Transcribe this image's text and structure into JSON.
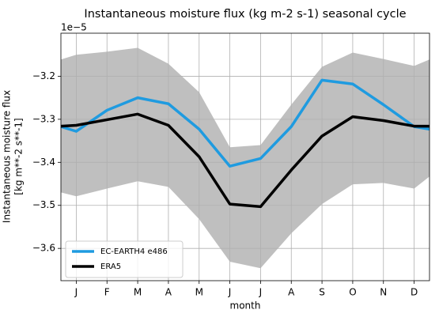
{
  "chart_data": {
    "type": "line",
    "title": "Instantaneous moisture flux (kg m-2 s-1) seasonal cycle",
    "offset_label": "1e−5",
    "ylabel": [
      "Instantaneous moisture flux",
      "[kg m**-2 s**-1]"
    ],
    "xlabel": "month",
    "x": [
      0.5,
      1,
      2,
      3,
      4,
      5,
      6,
      7,
      8,
      9,
      10,
      11,
      12,
      12.5
    ],
    "xlim": [
      0.5,
      12.5
    ],
    "xticks": [
      {
        "value": 1,
        "label": "J"
      },
      {
        "value": 2,
        "label": "F"
      },
      {
        "value": 3,
        "label": "M"
      },
      {
        "value": 4,
        "label": "A"
      },
      {
        "value": 5,
        "label": "M"
      },
      {
        "value": 6,
        "label": "J"
      },
      {
        "value": 7,
        "label": "J"
      },
      {
        "value": 8,
        "label": "A"
      },
      {
        "value": 9,
        "label": "S"
      },
      {
        "value": 10,
        "label": "O"
      },
      {
        "value": 11,
        "label": "N"
      },
      {
        "value": 12,
        "label": "D"
      }
    ],
    "ylim": [
      -3.675,
      -3.1
    ],
    "yticks": [
      {
        "value": -3.6,
        "label": "−3.6"
      },
      {
        "value": -3.5,
        "label": "−3.5"
      },
      {
        "value": -3.4,
        "label": "−3.4"
      },
      {
        "value": -3.3,
        "label": "−3.3"
      },
      {
        "value": -3.2,
        "label": "−3.2"
      }
    ],
    "grid": true,
    "legend": "lower left",
    "band": {
      "color": "#bfbfbf",
      "upper": [
        -3.161,
        -3.15,
        -3.143,
        -3.134,
        -3.171,
        -3.237,
        -3.365,
        -3.36,
        -3.266,
        -3.178,
        -3.145,
        -3.16,
        -3.176,
        -3.161
      ],
      "lower": [
        -3.47,
        -3.479,
        -3.461,
        -3.444,
        -3.457,
        -3.532,
        -3.631,
        -3.646,
        -3.565,
        -3.497,
        -3.451,
        -3.448,
        -3.461,
        -3.433
      ]
    },
    "series": [
      {
        "name": "EC-EARTH4 e486",
        "color": "#1f9be0",
        "values": [
          -3.317,
          -3.328,
          -3.279,
          -3.25,
          -3.264,
          -3.323,
          -3.409,
          -3.391,
          -3.317,
          -3.209,
          -3.218,
          -3.266,
          -3.317,
          -3.323
        ]
      },
      {
        "name": "ERA5",
        "color": "#000000",
        "values": [
          -3.316,
          -3.314,
          -3.301,
          -3.288,
          -3.314,
          -3.387,
          -3.497,
          -3.503,
          -3.418,
          -3.339,
          -3.294,
          -3.303,
          -3.316,
          -3.316
        ]
      }
    ]
  }
}
